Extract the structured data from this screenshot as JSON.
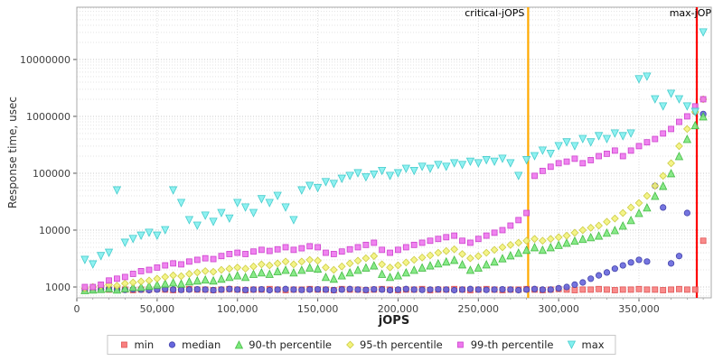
{
  "chart_data": {
    "type": "scatter",
    "title": "",
    "xlabel": "jOPS",
    "ylabel": "Response time, usec",
    "xlim": [
      0,
      395000
    ],
    "ylim": [
      645,
      83000000
    ],
    "x_ticks": [
      0,
      50000,
      100000,
      150000,
      200000,
      250000,
      300000,
      350000
    ],
    "y_ticks": [
      1000,
      10000,
      100000,
      1000000,
      10000000
    ],
    "grid": "dotted",
    "legend_position": "bottom",
    "vlines": [
      {
        "name": "critical-jops",
        "label": "critical-jOPS",
        "x": 281000,
        "color": "#ffaa00"
      },
      {
        "name": "max-jops",
        "label": "max-jOP",
        "x": 386000,
        "color": "#ff0000"
      }
    ],
    "x_values": [
      5000,
      10000,
      15000,
      20000,
      25000,
      30000,
      35000,
      40000,
      45000,
      50000,
      55000,
      60000,
      65000,
      70000,
      75000,
      80000,
      85000,
      90000,
      95000,
      100000,
      105000,
      110000,
      115000,
      120000,
      125000,
      130000,
      135000,
      140000,
      145000,
      150000,
      155000,
      160000,
      165000,
      170000,
      175000,
      180000,
      185000,
      190000,
      195000,
      200000,
      205000,
      210000,
      215000,
      220000,
      225000,
      230000,
      235000,
      240000,
      245000,
      250000,
      255000,
      260000,
      265000,
      270000,
      275000,
      280000,
      285000,
      290000,
      295000,
      300000,
      305000,
      310000,
      315000,
      320000,
      325000,
      330000,
      335000,
      340000,
      345000,
      350000,
      355000,
      360000,
      365000,
      370000,
      375000,
      380000,
      385000,
      390000
    ],
    "series": [
      {
        "name": "min",
        "marker": "square",
        "fill": "#f87f7f",
        "stroke": "#e05555",
        "size": 3,
        "values": [
          900,
          880,
          900,
          900,
          920,
          900,
          880,
          900,
          900,
          920,
          900,
          880,
          900,
          920,
          900,
          900,
          880,
          900,
          920,
          900,
          880,
          900,
          900,
          920,
          900,
          880,
          900,
          900,
          920,
          900,
          900,
          880,
          920,
          900,
          900,
          880,
          900,
          920,
          900,
          880,
          900,
          900,
          920,
          880,
          900,
          900,
          920,
          900,
          880,
          900,
          920,
          900,
          880,
          900,
          900,
          920,
          900,
          880,
          900,
          920,
          900,
          880,
          900,
          900,
          920,
          900,
          880,
          900,
          900,
          920,
          900,
          900,
          880,
          900,
          920,
          900,
          900,
          6500
        ]
      },
      {
        "name": "median",
        "marker": "circle",
        "fill": "#6666dd",
        "stroke": "#4444aa",
        "size": 3.2,
        "values": [
          900,
          880,
          900,
          920,
          900,
          890,
          910,
          900,
          880,
          900,
          920,
          900,
          890,
          900,
          910,
          900,
          880,
          900,
          920,
          900,
          890,
          900,
          910,
          880,
          900,
          920,
          900,
          890,
          900,
          910,
          900,
          880,
          900,
          920,
          900,
          890,
          910,
          900,
          880,
          900,
          920,
          900,
          890,
          900,
          910,
          900,
          880,
          900,
          920,
          900,
          890,
          900,
          910,
          900,
          880,
          900,
          920,
          900,
          900,
          950,
          1000,
          1100,
          1200,
          1400,
          1600,
          1800,
          2100,
          2400,
          2700,
          3000,
          2800,
          60000,
          25000,
          2600,
          3500,
          20000,
          1200000,
          1100000
        ]
      },
      {
        "name": "90-th percentile",
        "marker": "triangle-up",
        "fill": "#7ce87c",
        "stroke": "#44bb44",
        "size": 4,
        "values": [
          880,
          900,
          920,
          950,
          900,
          950,
          1000,
          1000,
          1050,
          1100,
          1150,
          1200,
          1150,
          1250,
          1300,
          1350,
          1300,
          1400,
          1500,
          1600,
          1500,
          1700,
          1800,
          1700,
          1900,
          2000,
          1800,
          2000,
          2200,
          2100,
          1500,
          1400,
          1600,
          1800,
          2000,
          2200,
          2400,
          1700,
          1500,
          1600,
          1800,
          2000,
          2200,
          2400,
          2600,
          2800,
          3000,
          2500,
          2000,
          2200,
          2500,
          2800,
          3200,
          3600,
          4000,
          4500,
          5000,
          4500,
          5000,
          5500,
          6000,
          6500,
          7000,
          7500,
          8000,
          9000,
          10000,
          12000,
          15000,
          20000,
          25000,
          40000,
          60000,
          100000,
          200000,
          400000,
          700000,
          1000000
        ]
      },
      {
        "name": "95-th percentile",
        "marker": "diamond",
        "fill": "#f3f37c",
        "stroke": "#cccc44",
        "size": 3.8,
        "values": [
          950,
          1000,
          1050,
          1100,
          1050,
          1150,
          1200,
          1250,
          1300,
          1400,
          1500,
          1600,
          1550,
          1700,
          1800,
          1900,
          1850,
          2000,
          2100,
          2200,
          2100,
          2300,
          2500,
          2400,
          2600,
          2800,
          2500,
          2800,
          3000,
          2900,
          2200,
          2000,
          2300,
          2600,
          2900,
          3200,
          3500,
          2500,
          2200,
          2400,
          2700,
          3000,
          3300,
          3600,
          4000,
          4300,
          4600,
          3800,
          3200,
          3500,
          4000,
          4500,
          5000,
          5500,
          6000,
          6500,
          7000,
          6500,
          7000,
          7500,
          8000,
          9000,
          10000,
          11000,
          12000,
          14000,
          16000,
          20000,
          25000,
          30000,
          40000,
          60000,
          90000,
          150000,
          300000,
          600000,
          1200000,
          2000000
        ]
      },
      {
        "name": "99-th percentile",
        "marker": "square",
        "fill": "#ee77ee",
        "stroke": "#cc44cc",
        "size": 3,
        "values": [
          1000,
          1000,
          1100,
          1300,
          1400,
          1500,
          1700,
          1900,
          2000,
          2200,
          2400,
          2600,
          2500,
          2800,
          3000,
          3200,
          3100,
          3500,
          3800,
          4000,
          3800,
          4200,
          4500,
          4300,
          4600,
          5000,
          4500,
          4800,
          5200,
          5000,
          4000,
          3800,
          4200,
          4600,
          5000,
          5500,
          6000,
          4500,
          4000,
          4500,
          5000,
          5500,
          6000,
          6500,
          7000,
          7500,
          8000,
          6500,
          6000,
          7000,
          8000,
          9000,
          10000,
          12000,
          15000,
          20000,
          90000,
          110000,
          130000,
          150000,
          160000,
          180000,
          150000,
          170000,
          200000,
          220000,
          250000,
          200000,
          250000,
          300000,
          350000,
          400000,
          500000,
          600000,
          800000,
          1000000,
          1500000,
          2000000
        ]
      },
      {
        "name": "max",
        "marker": "triangle-down",
        "fill": "#84f0f0",
        "stroke": "#44cccc",
        "size": 4,
        "values": [
          3000,
          2500,
          3500,
          4000,
          50000,
          6000,
          7000,
          8000,
          9000,
          8000,
          10000,
          50000,
          30000,
          15000,
          12000,
          18000,
          14000,
          20000,
          16000,
          30000,
          25000,
          20000,
          35000,
          30000,
          40000,
          25000,
          15000,
          50000,
          60000,
          55000,
          70000,
          65000,
          80000,
          90000,
          100000,
          85000,
          95000,
          110000,
          90000,
          100000,
          120000,
          110000,
          130000,
          120000,
          140000,
          130000,
          150000,
          140000,
          160000,
          150000,
          170000,
          160000,
          180000,
          150000,
          90000,
          170000,
          200000,
          250000,
          220000,
          300000,
          350000,
          300000,
          400000,
          350000,
          450000,
          400000,
          500000,
          450000,
          500000,
          4500000,
          5000000,
          2000000,
          1500000,
          2500000,
          2000000,
          1500000,
          1200000,
          30000000
        ]
      }
    ]
  }
}
